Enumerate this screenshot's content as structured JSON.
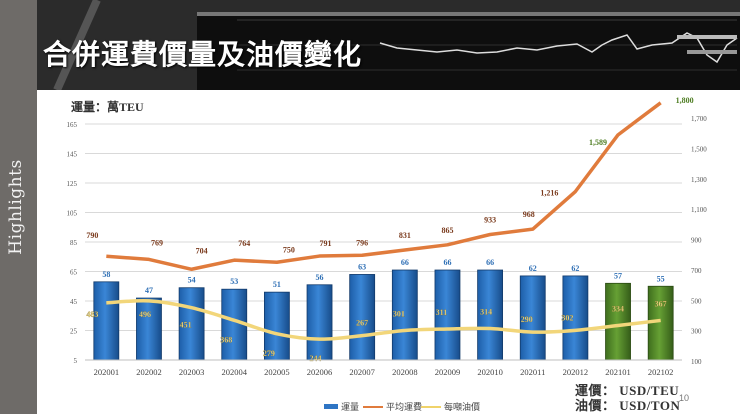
{
  "sidebar": {
    "label": "Highlights"
  },
  "header": {
    "title": "合併運費價量及油價變化"
  },
  "chart_meta": {
    "left_axis_title": "運量：萬TEU",
    "units": [
      {
        "label": "運價",
        "sep": "：",
        "unit": "USD/TEU"
      },
      {
        "label": "油價",
        "sep": "：",
        "unit": "USD/TON"
      }
    ],
    "page_number": "10"
  },
  "legend": [
    {
      "label": "運量",
      "color": "#2e75c4",
      "type": "bar"
    },
    {
      "label": "平均運費",
      "color": "#e07b3c",
      "type": "line"
    },
    {
      "label": "每噸油價",
      "color": "#f0d36a",
      "type": "line"
    }
  ],
  "chart_data": {
    "type": "bar",
    "title": "合併運費價量及油價變化",
    "categories": [
      "202001",
      "202002",
      "202003",
      "202004",
      "202005",
      "202006",
      "202007",
      "202008",
      "202009",
      "202010",
      "202011",
      "202012",
      "202101",
      "202102"
    ],
    "series": [
      {
        "name": "運量",
        "axis": "left",
        "type": "bar",
        "color": "#2e75c4",
        "highlight_color": "#5a8a2e",
        "highlight_from_index": 12,
        "values": [
          58,
          47,
          54,
          53,
          51,
          56,
          63,
          66,
          66,
          66,
          62,
          62,
          57,
          55
        ]
      },
      {
        "name": "平均運費",
        "axis": "right",
        "type": "line",
        "color": "#e07b3c",
        "values": [
          790,
          769,
          704,
          764,
          750,
          791,
          796,
          831,
          865,
          933,
          968,
          1216,
          1589,
          1800
        ],
        "labels": [
          "790",
          "769",
          "704",
          "764",
          "750",
          "791",
          "796",
          "831",
          "865",
          "933",
          "968",
          "1,216",
          "1,589",
          "1,800"
        ]
      },
      {
        "name": "每噸油價",
        "axis": "right",
        "type": "line",
        "color": "#f0d36a",
        "values": [
          483,
          496,
          451,
          368,
          279,
          244,
          267,
          301,
          311,
          314,
          290,
          302,
          334,
          367
        ]
      }
    ],
    "ylabel": "運量：萬TEU",
    "ylim": [
      5,
      165
    ],
    "yticks": [
      5,
      25,
      45,
      65,
      85,
      105,
      125,
      145,
      165
    ],
    "y2lim": [
      100,
      1800
    ],
    "y2ticks": [
      "100",
      "300",
      "500",
      "700",
      "900",
      "1,100",
      "1,300",
      "1,500",
      "1,700"
    ],
    "y2label": "運價：USD/TEU 油價：USD/TON",
    "grid": true,
    "legend_position": "bottom"
  }
}
